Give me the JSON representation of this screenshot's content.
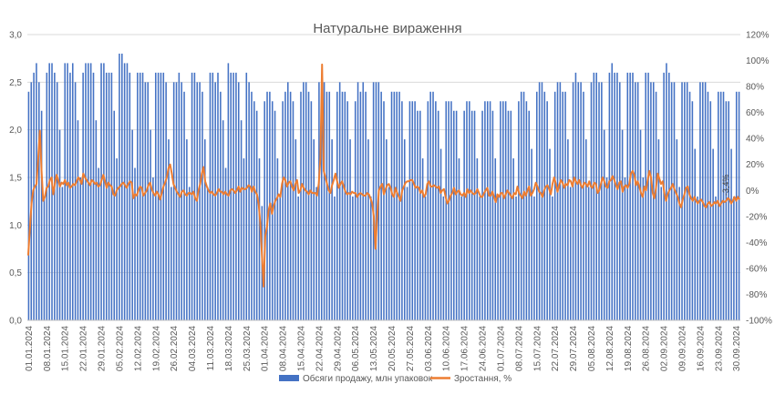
{
  "chart_data": {
    "type": "bar+line",
    "title": "Натуральне вираження",
    "x_tick_labels": [
      "01.01.2024",
      "08.01.2024",
      "15.01.2024",
      "22.01.2024",
      "29.01.2024",
      "05.02.2024",
      "12.02.2024",
      "19.02.2024",
      "26.02.2024",
      "04.03.2024",
      "11.03.2024",
      "18.03.2024",
      "25.03.2024",
      "01.04.2024",
      "08.04.2024",
      "15.04.2024",
      "22.04.2024",
      "29.04.2024",
      "06.05.2024",
      "13.05.2024",
      "20.05.2024",
      "27.05.2024",
      "03.06.2024",
      "10.06.2024",
      "17.06.2024",
      "24.06.2024",
      "01.07.2024",
      "08.07.2024",
      "15.07.2024",
      "22.07.2024",
      "29.07.2024",
      "05.08.2024",
      "12.08.2024",
      "19.08.2024",
      "26.08.2024",
      "02.09.2024",
      "09.09.2024",
      "16.09.2024",
      "23.09.2024",
      "30.09.2024"
    ],
    "y_left": {
      "ticks": [
        "0,0",
        "0,5",
        "1,0",
        "1,5",
        "2,0",
        "2,5",
        "3,0"
      ],
      "min": 0,
      "max": 3
    },
    "y_right": {
      "ticks": [
        "-100%",
        "-80%",
        "-60%",
        "-40%",
        "-20%",
        "0%",
        "20%",
        "40%",
        "60%",
        "80%",
        "100%",
        "120%"
      ],
      "min": -100,
      "max": 120
    },
    "series": [
      {
        "name": "Обсяги продажу, млн упаковок",
        "color": "#4472C4",
        "axis": "left",
        "weekly_values": [
          [
            2.4,
            2.5,
            2.6,
            2.7,
            2.5,
            2.2,
            1.3
          ],
          [
            2.6,
            2.7,
            2.7,
            2.6,
            2.5,
            2.0,
            1.4
          ],
          [
            2.7,
            2.7,
            2.6,
            2.7,
            2.5,
            2.1,
            1.5
          ],
          [
            2.6,
            2.7,
            2.7,
            2.7,
            2.6,
            2.1,
            1.6
          ],
          [
            2.7,
            2.7,
            2.6,
            2.6,
            2.6,
            2.2,
            1.7
          ],
          [
            2.8,
            2.8,
            2.7,
            2.7,
            2.6,
            2.0,
            1.6
          ],
          [
            2.6,
            2.6,
            2.6,
            2.5,
            2.5,
            2.0,
            1.5
          ],
          [
            2.6,
            2.6,
            2.6,
            2.6,
            2.5,
            1.9,
            1.4
          ],
          [
            2.5,
            2.5,
            2.6,
            2.5,
            2.4,
            1.9,
            1.4
          ],
          [
            2.6,
            2.6,
            2.5,
            2.5,
            2.4,
            1.9,
            1.4
          ],
          [
            2.6,
            2.6,
            2.5,
            2.6,
            2.4,
            2.1,
            1.6
          ],
          [
            2.7,
            2.6,
            2.6,
            2.6,
            2.5,
            2.1,
            1.7
          ],
          [
            2.6,
            2.5,
            2.4,
            2.3,
            2.2,
            1.7,
            1.2
          ],
          [
            2.3,
            2.4,
            2.4,
            2.3,
            2.2,
            1.7,
            1.3
          ],
          [
            2.3,
            2.4,
            2.5,
            2.4,
            2.3,
            1.9,
            1.3
          ],
          [
            2.4,
            2.5,
            2.5,
            2.4,
            2.3,
            1.9,
            1.4
          ],
          [
            2.5,
            2.5,
            2.5,
            2.4,
            2.4,
            1.9,
            1.3
          ],
          [
            2.4,
            2.5,
            2.4,
            2.4,
            2.3,
            1.9,
            1.3
          ],
          [
            2.3,
            2.5,
            2.4,
            2.5,
            2.4,
            1.9,
            1.3
          ],
          [
            2.5,
            2.5,
            2.5,
            2.4,
            2.3,
            1.9,
            1.4
          ],
          [
            2.4,
            2.4,
            2.4,
            2.4,
            2.3,
            1.9,
            1.4
          ],
          [
            2.3,
            2.3,
            2.3,
            2.2,
            2.2,
            1.7,
            1.3
          ],
          [
            2.3,
            2.4,
            2.4,
            2.3,
            2.2,
            1.8,
            1.3
          ],
          [
            2.3,
            2.3,
            2.3,
            2.2,
            2.2,
            1.7,
            1.3
          ],
          [
            2.2,
            2.3,
            2.3,
            2.2,
            2.2,
            1.7,
            1.3
          ],
          [
            2.2,
            2.3,
            2.3,
            2.3,
            2.2,
            1.7,
            1.3
          ],
          [
            2.3,
            2.3,
            2.3,
            2.2,
            2.2,
            1.7,
            1.3
          ],
          [
            2.3,
            2.4,
            2.4,
            2.3,
            2.2,
            1.8,
            1.3
          ],
          [
            2.4,
            2.5,
            2.5,
            2.4,
            2.3,
            1.8,
            1.3
          ],
          [
            2.4,
            2.5,
            2.5,
            2.4,
            2.4,
            1.9,
            1.4
          ],
          [
            2.5,
            2.6,
            2.5,
            2.5,
            2.4,
            1.9,
            1.4
          ],
          [
            2.5,
            2.6,
            2.6,
            2.5,
            2.5,
            2.0,
            1.5
          ],
          [
            2.6,
            2.7,
            2.6,
            2.6,
            2.5,
            2.0,
            1.5
          ],
          [
            2.6,
            2.6,
            2.6,
            2.5,
            2.5,
            2.0,
            1.5
          ],
          [
            2.6,
            2.6,
            2.5,
            2.5,
            2.4,
            1.9,
            1.4
          ],
          [
            2.6,
            2.7,
            2.6,
            2.5,
            2.5,
            1.9,
            1.4
          ],
          [
            2.5,
            2.5,
            2.5,
            2.4,
            2.3,
            1.8,
            1.3
          ],
          [
            2.5,
            2.5,
            2.5,
            2.4,
            2.3,
            1.8,
            1.3
          ],
          [
            2.4,
            2.4,
            2.4,
            2.3,
            2.3,
            1.8,
            1.3
          ],
          [
            2.4,
            2.4
          ]
        ]
      },
      {
        "name": "Зростання, %",
        "color": "#ED7D31",
        "axis": "right",
        "values": [
          -50,
          -30,
          -10,
          0,
          3,
          5,
          25,
          46,
          15,
          -8,
          -5,
          2,
          3,
          8,
          10,
          -3,
          5,
          12,
          8,
          3,
          6,
          5,
          8,
          4,
          6,
          2,
          3,
          5,
          4,
          7,
          10,
          8,
          5,
          13,
          10,
          8,
          6,
          4,
          8,
          7,
          5,
          6,
          3,
          4,
          8,
          12,
          7,
          2,
          6,
          4,
          3,
          -3,
          -4,
          0,
          2,
          3,
          5,
          6,
          4,
          2,
          5,
          7,
          6,
          -6,
          -3,
          -4,
          0,
          3,
          2,
          -4,
          -2,
          0,
          4,
          6,
          1,
          -2,
          -4,
          -1,
          -3,
          -7,
          -2,
          3,
          6,
          10,
          17,
          20,
          13,
          5,
          2,
          -1,
          -3,
          -5,
          -1,
          0,
          -3,
          -4,
          -2,
          -2,
          -3,
          -1,
          -6,
          -8,
          0,
          5,
          13,
          18,
          7,
          3,
          0,
          -2,
          -1,
          -3,
          -4,
          -2,
          1,
          -1,
          -1,
          -3,
          -1,
          -3,
          -4,
          0,
          1,
          0,
          -2,
          0,
          3,
          -1,
          2,
          1,
          1,
          2,
          4,
          3,
          -1,
          3,
          -1,
          -3,
          -10,
          -25,
          -50,
          -74,
          -35,
          -28,
          -15,
          -10,
          -18,
          -12,
          -8,
          -6,
          -3,
          -5,
          5,
          10,
          8,
          3,
          6,
          7,
          3,
          0,
          5,
          8,
          -2,
          0,
          5,
          2,
          0,
          -1,
          -3,
          0,
          -2,
          -2,
          -2,
          -4,
          5,
          25,
          97,
          15,
          10,
          5,
          0,
          -2,
          4,
          8,
          13,
          7,
          2,
          5,
          7,
          3,
          -1,
          -3,
          -2,
          -3,
          -1,
          -2,
          -2,
          -5,
          -3,
          -2,
          -3,
          -4,
          -4,
          -2,
          -3,
          -6,
          -10,
          -20,
          -45,
          -20,
          0,
          3,
          5,
          -3,
          1,
          4,
          5,
          2,
          -3,
          -5,
          2,
          -2,
          -5,
          -8,
          0,
          3,
          6,
          7,
          7,
          8,
          8,
          5,
          2,
          3,
          2,
          -2,
          0,
          -5,
          -3,
          5,
          7,
          3,
          3,
          4,
          3,
          2,
          3,
          -2,
          0,
          1,
          -5,
          -10,
          -8,
          -4,
          -2,
          2,
          -3,
          -1,
          0,
          -3,
          -4,
          -2,
          -5,
          1,
          -2,
          0,
          -2,
          -3,
          -2,
          1,
          -2,
          -5,
          -5,
          -2,
          0,
          2,
          -4,
          -4,
          -1,
          -5,
          -9,
          -3,
          -5,
          -2,
          -2,
          -6,
          -3,
          0,
          -2,
          -4,
          -6,
          -2,
          -3,
          3,
          -2,
          -4,
          -6,
          -1,
          -4,
          0,
          3,
          -4,
          -2,
          1,
          6,
          3,
          -1,
          -2,
          -5,
          0,
          3,
          4,
          1,
          -3,
          5,
          10,
          5,
          -1,
          4,
          8,
          6,
          2,
          5,
          4,
          8,
          7,
          3,
          10,
          7,
          5,
          8,
          4,
          2,
          6,
          5,
          3,
          7,
          3,
          2,
          6,
          5,
          -2,
          0,
          5,
          10,
          7,
          3,
          2,
          7,
          8,
          11,
          8,
          4,
          1,
          6,
          7,
          -1,
          3,
          4,
          2,
          5,
          13,
          15,
          12,
          4,
          7,
          3,
          -2,
          -5,
          3,
          0,
          8,
          15,
          10,
          -2,
          -6,
          2,
          13,
          9,
          5,
          7,
          -2,
          -8,
          -3,
          0,
          2,
          5,
          1,
          -2,
          -5,
          -10,
          -13,
          -7,
          -3,
          2,
          3,
          -3,
          -6,
          -8,
          -5,
          -8,
          -10,
          -8,
          -7,
          -9,
          -12,
          -13,
          -10,
          -9,
          -12,
          -11,
          -9,
          -10,
          -8,
          -12,
          -10,
          -8,
          -9,
          -8,
          -6,
          -7,
          -10,
          -8,
          -5,
          -8,
          -5,
          -7
        ]
      }
    ],
    "annotation": "-3,4%",
    "legend": {
      "placement": "bottom"
    }
  }
}
